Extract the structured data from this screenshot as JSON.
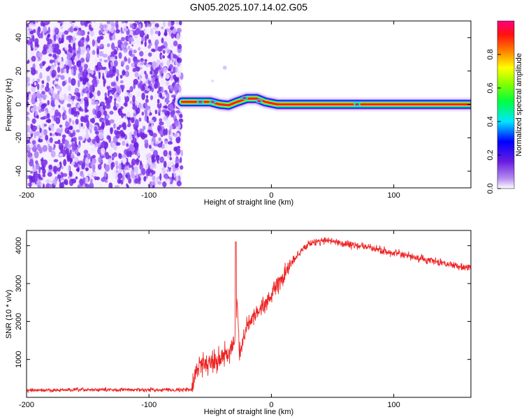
{
  "title": "GN05.2025.107.14.02.G05",
  "chart_data": [
    {
      "type": "heatmap",
      "xlabel": "Height of straight line (km)",
      "ylabel": "Frequency (Hz)",
      "xlim": [
        -200,
        163
      ],
      "ylim": [
        -50,
        50
      ],
      "x_ticks": [
        "-200",
        "-100",
        "0",
        "100"
      ],
      "x_tick_values": [
        -200,
        -100,
        0,
        100
      ],
      "y_ticks": [
        "40",
        "20",
        "0",
        "-20",
        "-40"
      ],
      "y_tick_values": [
        40,
        20,
        0,
        -20,
        -40
      ],
      "noise_region_x": [
        -200,
        -73
      ],
      "signal_start_x": -73,
      "signal_track": [
        {
          "x": -73,
          "y": 1.5
        },
        {
          "x": -60,
          "y": 1.5
        },
        {
          "x": -50,
          "y": 1.5
        },
        {
          "x": -42,
          "y": 0
        },
        {
          "x": -35,
          "y": -0.5
        },
        {
          "x": -28,
          "y": 1.5
        },
        {
          "x": -20,
          "y": 3.5
        },
        {
          "x": -12,
          "y": 3.5
        },
        {
          "x": -5,
          "y": 1.5
        },
        {
          "x": 5,
          "y": 0
        },
        {
          "x": 20,
          "y": 0
        },
        {
          "x": 60,
          "y": 0
        },
        {
          "x": 100,
          "y": 0
        },
        {
          "x": 163,
          "y": 0
        }
      ],
      "colorbar": {
        "label": "Normalized spectral amplitude",
        "ticks": [
          "0.0",
          "0.2",
          "0.4",
          "0.6",
          "0.8"
        ],
        "tick_values": [
          0.0,
          0.2,
          0.4,
          0.6,
          0.8
        ],
        "range": [
          0,
          1
        ],
        "colors": [
          "#ffffff",
          "#8a2be2",
          "#0000ff",
          "#00ffff",
          "#00ff00",
          "#ffff00",
          "#ff8000",
          "#ff0000",
          "#ff0080"
        ]
      }
    },
    {
      "type": "line",
      "xlabel": "Height of straight line (km)",
      "ylabel": "SNR (10 * v/v)",
      "xlim": [
        -200,
        163
      ],
      "ylim": [
        0,
        4400
      ],
      "x_ticks": [
        "-200",
        "-100",
        "0",
        "100"
      ],
      "x_tick_values": [
        -200,
        -100,
        0,
        100
      ],
      "y_ticks": [
        "4000",
        "3000",
        "2000",
        "1000"
      ],
      "y_tick_values": [
        4000,
        3000,
        2000,
        1000
      ],
      "color": "#ee2222",
      "series_envelope": [
        {
          "x": -200,
          "y": 180
        },
        {
          "x": -150,
          "y": 200
        },
        {
          "x": -100,
          "y": 200
        },
        {
          "x": -65,
          "y": 200
        },
        {
          "x": -60,
          "y": 850
        },
        {
          "x": -45,
          "y": 1000
        },
        {
          "x": -35,
          "y": 1150
        },
        {
          "x": -30,
          "y": 1400
        },
        {
          "x": -28,
          "y": 2500
        },
        {
          "x": -26,
          "y": 1100
        },
        {
          "x": -20,
          "y": 1900
        },
        {
          "x": -10,
          "y": 2300
        },
        {
          "x": 0,
          "y": 2700
        },
        {
          "x": 10,
          "y": 3200
        },
        {
          "x": 20,
          "y": 3700
        },
        {
          "x": 30,
          "y": 4050
        },
        {
          "x": 45,
          "y": 4150
        },
        {
          "x": 60,
          "y": 4050
        },
        {
          "x": 80,
          "y": 3950
        },
        {
          "x": 100,
          "y": 3800
        },
        {
          "x": 130,
          "y": 3600
        },
        {
          "x": 163,
          "y": 3400
        }
      ],
      "spike": {
        "x": -29,
        "y": 4100
      }
    }
  ]
}
